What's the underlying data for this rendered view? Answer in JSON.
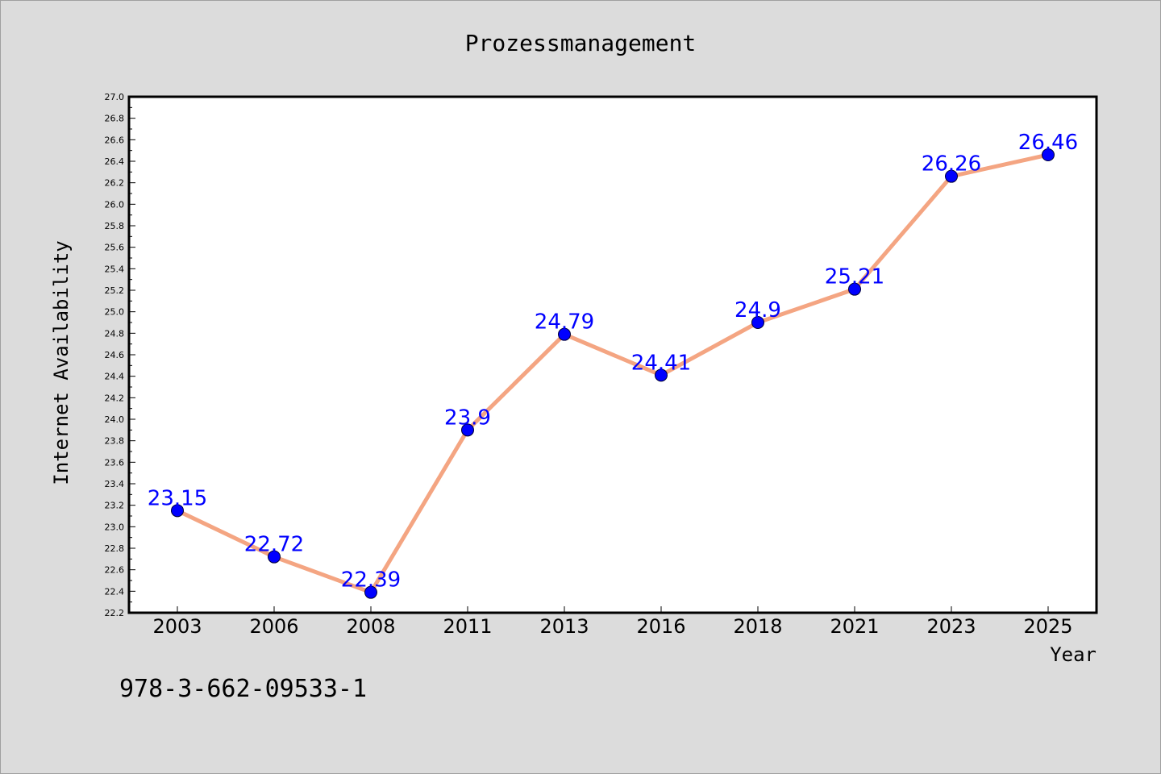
{
  "chart_data": {
    "type": "line",
    "title": "Prozessmanagement",
    "xlabel": "Year",
    "ylabel": "Internet Availability",
    "categories": [
      "2003",
      "2006",
      "2008",
      "2011",
      "2013",
      "2016",
      "2018",
      "2021",
      "2023",
      "2025"
    ],
    "series": [
      {
        "values": [
          23.15,
          22.72,
          22.39,
          23.9,
          24.79,
          24.41,
          24.9,
          25.21,
          26.26,
          26.46
        ]
      }
    ],
    "data_labels": [
      "23.15",
      "22.72",
      "22.39",
      "23.9",
      "24.79",
      "24.41",
      "24.9",
      "25.21",
      "26.26",
      "26.46"
    ],
    "ylim": [
      22.2,
      27.0
    ],
    "y_ticks": [
      "22.2",
      "22.4",
      "22.6",
      "22.8",
      "23.0",
      "23.2",
      "23.4",
      "23.6",
      "23.8",
      "24.0",
      "24.2",
      "24.4",
      "24.6",
      "24.8",
      "25.0",
      "25.2",
      "25.4",
      "25.6",
      "25.8",
      "26.0",
      "26.2",
      "26.4",
      "26.6",
      "26.8",
      "27.0"
    ],
    "grid": false,
    "legend": "none",
    "colors": {
      "line": "#f4a582",
      "marker": "#0000ff",
      "label": "#0000ff",
      "background": "#dcdcdc",
      "plot_background": "#ffffff"
    }
  },
  "footer": {
    "isbn": "978-3-662-09533-1"
  }
}
